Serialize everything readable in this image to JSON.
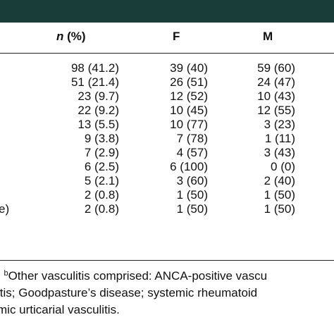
{
  "colors": {
    "header_band": "#193e3a"
  },
  "table": {
    "headers": {
      "n_letter": "n",
      "n_suffix": " (%)",
      "female": "F",
      "male": "M"
    },
    "rows": [
      {
        "label": "",
        "n": "98 (41.2)",
        "f": "39 (40)",
        "m": "59 (60)"
      },
      {
        "label": "",
        "n": "51 (21.4)",
        "f": "26 (51)",
        "m": "24 (47)"
      },
      {
        "label": "",
        "n": "23 (9.7)",
        "f": "12 (52)",
        "m": "10 (43)"
      },
      {
        "label": "",
        "n": "22 (9.2)",
        "f": "10 (45)",
        "m": "12 (55)"
      },
      {
        "label": "",
        "n": "13 (5.5)",
        "f": "10 (77)",
        "m": "3 (23)"
      },
      {
        "label": "",
        "n": "9 (3.8)",
        "f": "7 (78)",
        "m": "1 (11)"
      },
      {
        "label": "",
        "n": "7 (2.9)",
        "f": "4 (57)",
        "m": "3 (43)"
      },
      {
        "label": "",
        "n": "6 (2.5)",
        "f": "6 (100)",
        "m": "0 (0)"
      },
      {
        "label": "",
        "n": "5 (2.1)",
        "f": "3 (60)",
        "m": "2 (40)"
      },
      {
        "label": "",
        "n": "2 (0.8)",
        "f": "1 (50)",
        "m": "1 (50)"
      },
      {
        "label": "e)",
        "n": "2 (0.8)",
        "f": "1 (50)",
        "m": "1 (50)"
      }
    ]
  },
  "footnote": {
    "line1_prefix": ". ",
    "line1_sup": "b",
    "line1_text": "Other vasculitis comprised: ANCA-positive vascu",
    "line2": "itis; Goodpasture’s disease; systemic rheumatoid",
    "line3": "mic urticarial vasculitis."
  }
}
